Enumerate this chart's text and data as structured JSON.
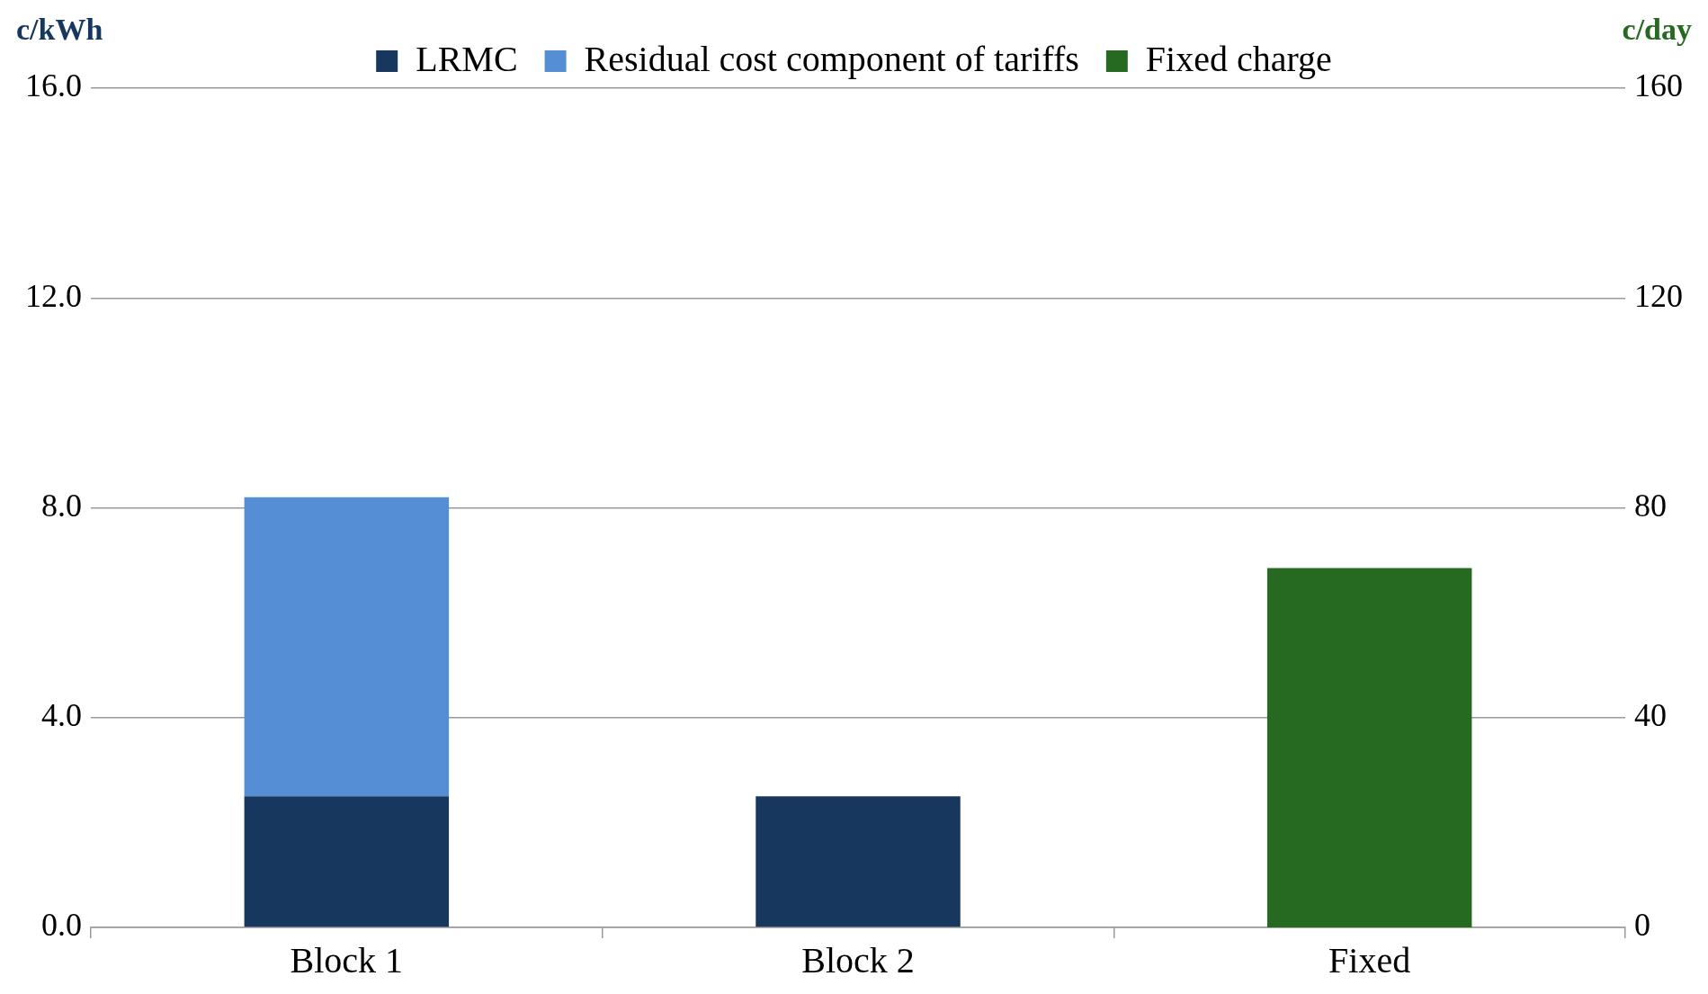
{
  "chart_data": {
    "type": "bar",
    "stacked": true,
    "categories": [
      "Block 1",
      "Block 2",
      "Fixed"
    ],
    "series": [
      {
        "name": "LRMC",
        "color": "#17375e",
        "values": [
          2.5,
          2.5,
          null
        ]
      },
      {
        "name": "Residual cost component of tariffs",
        "color": "#558ed5",
        "values": [
          5.7,
          null,
          null
        ]
      },
      {
        "name": "Fixed charge",
        "color": "#266a21",
        "values": [
          null,
          null,
          68.5
        ],
        "axis": "y2"
      }
    ],
    "ylabel": "c/kWh",
    "y2label": "c/day",
    "ylim": [
      0,
      16
    ],
    "yticks": [
      {
        "value": 0,
        "label": "0.0"
      },
      {
        "value": 4,
        "label": "4.0"
      },
      {
        "value": 8,
        "label": "8.0"
      },
      {
        "value": 12,
        "label": "12.0"
      },
      {
        "value": 16,
        "label": "16.0"
      }
    ],
    "y2lim": [
      0,
      160
    ],
    "y2ticks": [
      0,
      40,
      80,
      120,
      160
    ],
    "grid": "y",
    "legend": "top"
  }
}
